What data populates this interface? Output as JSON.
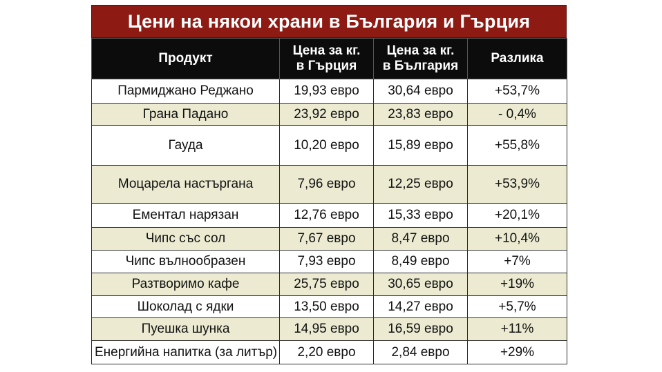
{
  "title": "Цени на някои храни в България и Гърция",
  "columns": [
    "Продукт",
    "Цена за кг. в Гърция",
    "Цена за кг. в България",
    "Разлика"
  ],
  "column_lines": [
    [
      "Продукт"
    ],
    [
      "Цена за кг.",
      "в Гърция"
    ],
    [
      "Цена за кг.",
      "в България"
    ],
    [
      "Разлика"
    ]
  ],
  "chart_data": {
    "type": "table",
    "title": "Цени на някои храни в България и Гърция",
    "columns": [
      "Продукт",
      "Цена за кг. в Гърция",
      "Цена за кг. в България",
      "Разлика"
    ],
    "rows": [
      {
        "product": "Пармиджано Реджано",
        "greece": "19,93 евро",
        "bulgaria": "30,64 евро",
        "difference": "+53,7%"
      },
      {
        "product": "Грана Падано",
        "greece": "23,92 евро",
        "bulgaria": "23,83 евро",
        "difference": "- 0,4%"
      },
      {
        "product": "Гауда",
        "greece": "10,20 евро",
        "bulgaria": "15,89 евро",
        "difference": "+55,8%"
      },
      {
        "product": "Моцарела настъргана",
        "greece": "7,96 евро",
        "bulgaria": "12,25 евро",
        "difference": "+53,9%"
      },
      {
        "product": "Ементал нарязан",
        "greece": "12,76 евро",
        "bulgaria": "15,33 евро",
        "difference": "+20,1%"
      },
      {
        "product": "Чипс със сол",
        "greece": "7,67 евро",
        "bulgaria": "8,47 евро",
        "difference": "+10,4%"
      },
      {
        "product": "Чипс вълнообразен",
        "greece": "7,93 евро",
        "bulgaria": "8,49 евро",
        "difference": "+7%"
      },
      {
        "product": "Разтворимо кафе",
        "greece": "25,75 евро",
        "bulgaria": "30,65 евро",
        "difference": "+19%"
      },
      {
        "product": "Шоколад с ядки",
        "greece": "13,50 евро",
        "bulgaria": "14,27 евро",
        "difference": "+5,7%"
      },
      {
        "product": "Пуешка шунка",
        "greece": "14,95 евро",
        "bulgaria": "16,59 евро",
        "difference": "+11%"
      },
      {
        "product": "Енергийна напитка (за литър)",
        "greece": "2,20 евро",
        "bulgaria": "2,84 евро",
        "difference": "+29%"
      }
    ]
  },
  "colors": {
    "title_bg": "#8e1a14",
    "header_bg": "#0c0c0c",
    "alt_row_bg": "#ecebd2",
    "row_bg": "#ffffff"
  }
}
